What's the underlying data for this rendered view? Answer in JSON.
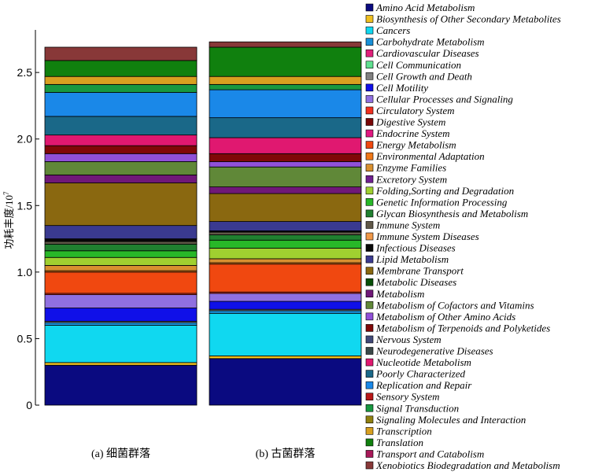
{
  "chart_data": {
    "type": "bar",
    "stacked": true,
    "categories": [
      "(a) 细菌群落",
      "(b) 古菌群落"
    ],
    "ylabel": "功耗丰度/10",
    "ylabel_exponent": "7",
    "ylim": [
      0,
      2.82
    ],
    "yticks": [
      {
        "value": 0,
        "label": "0"
      },
      {
        "value": 0.5,
        "label": "0.5"
      },
      {
        "value": 1.0,
        "label": "1.0"
      },
      {
        "value": 1.5,
        "label": "1.5"
      },
      {
        "value": 2.0,
        "label": "2.0"
      },
      {
        "value": 2.5,
        "label": "2.5"
      }
    ],
    "grid": false,
    "legend_position": "right",
    "series": [
      {
        "name": "Amino Acid Metabolism",
        "color": "#0a0a80",
        "values": [
          0.3,
          0.35
        ]
      },
      {
        "name": "Biosynthesis of Other Secondary Metabolites",
        "color": "#f0c020",
        "values": [
          0.02,
          0.02
        ]
      },
      {
        "name": "Cancers",
        "color": "#10d8f0",
        "values": [
          0.28,
          0.32
        ]
      },
      {
        "name": "Carbohydrate Metabolism",
        "color": "#1890d8",
        "values": [
          0.02,
          0.02
        ]
      },
      {
        "name": "Cardiovascular Diseases",
        "color": "#e0207a",
        "values": [
          0.0,
          0.0
        ]
      },
      {
        "name": "Cell Communication",
        "color": "#60e090",
        "values": [
          0.0,
          0.0
        ]
      },
      {
        "name": "Cell Growth and Death",
        "color": "#808080",
        "values": [
          0.01,
          0.01
        ]
      },
      {
        "name": "Cell Motility",
        "color": "#1010e8",
        "values": [
          0.1,
          0.06
        ]
      },
      {
        "name": "Cellular Processes and Signaling",
        "color": "#9070e0",
        "values": [
          0.1,
          0.06
        ]
      },
      {
        "name": "Circulatory System",
        "color": "#f03020",
        "values": [
          0.01,
          0.01
        ]
      },
      {
        "name": "Digestive System",
        "color": "#7a0808",
        "values": [
          0.0,
          0.0
        ]
      },
      {
        "name": "Endocrine System",
        "color": "#e01880",
        "values": [
          0.0,
          0.0
        ]
      },
      {
        "name": "Energy Metabolism",
        "color": "#f04810",
        "values": [
          0.16,
          0.21
        ]
      },
      {
        "name": "Environmental Adaptation",
        "color": "#f07818",
        "values": [
          0.01,
          0.01
        ]
      },
      {
        "name": "Enzyme Families",
        "color": "#d89030",
        "values": [
          0.04,
          0.03
        ]
      },
      {
        "name": "Excretory System",
        "color": "#702090",
        "values": [
          0.0,
          0.0
        ]
      },
      {
        "name": "Folding,Sorting and Degradation",
        "color": "#a0d030",
        "values": [
          0.06,
          0.08
        ]
      },
      {
        "name": "Genetic Information Processing",
        "color": "#28b828",
        "values": [
          0.05,
          0.06
        ]
      },
      {
        "name": "Glycan Biosynthesis and Metabolism",
        "color": "#208030",
        "values": [
          0.05,
          0.04
        ]
      },
      {
        "name": "Immune System",
        "color": "#605848",
        "values": [
          0.02,
          0.02
        ]
      },
      {
        "name": "Immune System Diseases",
        "color": "#f09848",
        "values": [
          0.0,
          0.0
        ]
      },
      {
        "name": "Infectious Diseases",
        "color": "#080808",
        "values": [
          0.02,
          0.01
        ]
      },
      {
        "name": "Lipid Metabolism",
        "color": "#3a3a90",
        "values": [
          0.1,
          0.07
        ]
      },
      {
        "name": "Membrane Transport",
        "color": "#8a6810",
        "values": [
          0.32,
          0.21
        ]
      },
      {
        "name": "Metabolic Diseases",
        "color": "#085008",
        "values": [
          0.0,
          0.0
        ]
      },
      {
        "name": "Metabolism",
        "color": "#701878",
        "values": [
          0.06,
          0.05
        ]
      },
      {
        "name": "Metabolism of Cofactors and Vitamins",
        "color": "#608838",
        "values": [
          0.1,
          0.15
        ]
      },
      {
        "name": "Metabolism of Other Amino Acids",
        "color": "#9050d8",
        "values": [
          0.06,
          0.04
        ]
      },
      {
        "name": "Metabolism of Terpenoids and Polyketides",
        "color": "#800808",
        "values": [
          0.06,
          0.06
        ]
      },
      {
        "name": "Nervous System",
        "color": "#404878",
        "values": [
          0.0,
          0.0
        ]
      },
      {
        "name": "Neurodegenerative Diseases",
        "color": "#3a4848",
        "values": [
          0.0,
          0.0
        ]
      },
      {
        "name": "Nucleotide Metabolism",
        "color": "#e01870",
        "values": [
          0.08,
          0.12
        ]
      },
      {
        "name": "Poorly Characterized",
        "color": "#1a6888",
        "values": [
          0.14,
          0.15
        ]
      },
      {
        "name": "Replication and Repair",
        "color": "#1a88e8",
        "values": [
          0.18,
          0.21
        ]
      },
      {
        "name": "Sensory System",
        "color": "#b81818",
        "values": [
          0.0,
          0.0
        ]
      },
      {
        "name": "Signal Transduction",
        "color": "#189840",
        "values": [
          0.06,
          0.04
        ]
      },
      {
        "name": "Signaling Molecules and Interaction",
        "color": "#908010",
        "values": [
          0.0,
          0.0
        ]
      },
      {
        "name": "Transcription",
        "color": "#d8a020",
        "values": [
          0.06,
          0.06
        ]
      },
      {
        "name": "Translation",
        "color": "#10800e",
        "values": [
          0.12,
          0.22
        ]
      },
      {
        "name": "Transport and Catabolism",
        "color": "#a81858",
        "values": [
          0.0,
          0.0
        ]
      },
      {
        "name": "Xenobiotics Biodegradation and Metabolism",
        "color": "#883838",
        "values": [
          0.1,
          0.04
        ]
      }
    ]
  }
}
